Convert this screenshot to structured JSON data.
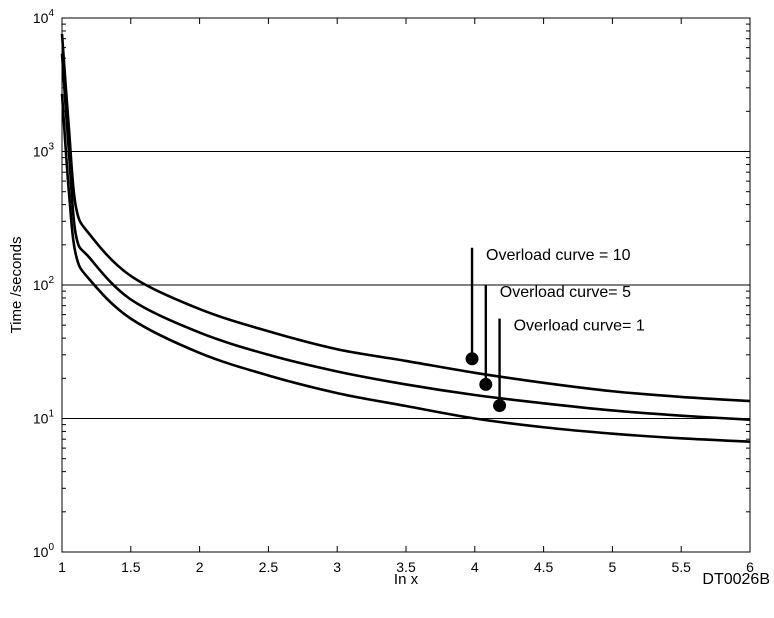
{
  "chart_data": {
    "type": "line",
    "title": "",
    "xlabel": "In x",
    "ylabel": "Time /seconds",
    "xlim": [
      1,
      6
    ],
    "ylim": [
      1,
      10000
    ],
    "yscale": "log",
    "grid": "horizontal major lines",
    "x_ticks": [
      "1",
      "1.5",
      "2",
      "2.5",
      "3",
      "3.5",
      "4",
      "4.5",
      "5",
      "5.5",
      "6"
    ],
    "y_ticks": [
      {
        "value": 1,
        "base": "10",
        "exp": "0"
      },
      {
        "value": 10,
        "base": "10",
        "exp": "1"
      },
      {
        "value": 100,
        "base": "10",
        "exp": "2"
      },
      {
        "value": 1000,
        "base": "10",
        "exp": "3"
      },
      {
        "value": 10000,
        "base": "10",
        "exp": "4"
      }
    ],
    "series": [
      {
        "name": "Overload curve = 10",
        "x": [
          1.0,
          1.05,
          1.1,
          1.2,
          1.5,
          2.0,
          2.5,
          3.0,
          3.5,
          4.0,
          4.5,
          5.0,
          5.5,
          6.0
        ],
        "y": [
          7600,
          1500,
          390,
          240,
          117,
          66,
          45,
          33,
          27,
          22,
          18.5,
          16,
          14.5,
          13.5
        ]
      },
      {
        "name": "Overload curve= 5",
        "x": [
          1.0,
          1.05,
          1.1,
          1.2,
          1.5,
          2.0,
          2.5,
          3.0,
          3.5,
          4.0,
          4.5,
          5.0,
          5.5,
          6.0
        ],
        "y": [
          5400,
          1000,
          240,
          160,
          78,
          44,
          30,
          22.5,
          18,
          15,
          13,
          11.5,
          10.5,
          9.8
        ]
      },
      {
        "name": "Overload curve= 1",
        "x": [
          1.0,
          1.05,
          1.1,
          1.2,
          1.5,
          2.0,
          2.5,
          3.0,
          3.5,
          4.0,
          4.5,
          5.0,
          5.5,
          6.0
        ],
        "y": [
          2700,
          500,
          170,
          110,
          56,
          31,
          21,
          15.5,
          12.4,
          10,
          8.6,
          7.7,
          7.1,
          6.7
        ]
      }
    ],
    "annotations": [
      {
        "text": "Overload curve = 10",
        "marker_x": 3.98,
        "marker_y": 28,
        "line_top_y": 190
      },
      {
        "text": "Overload curve= 5",
        "marker_x": 4.08,
        "marker_y": 18,
        "line_top_y": 100
      },
      {
        "text": "Overload curve= 1",
        "marker_x": 4.18,
        "marker_y": 12.5,
        "line_top_y": 56
      }
    ],
    "figure_code": "DT0026B"
  }
}
